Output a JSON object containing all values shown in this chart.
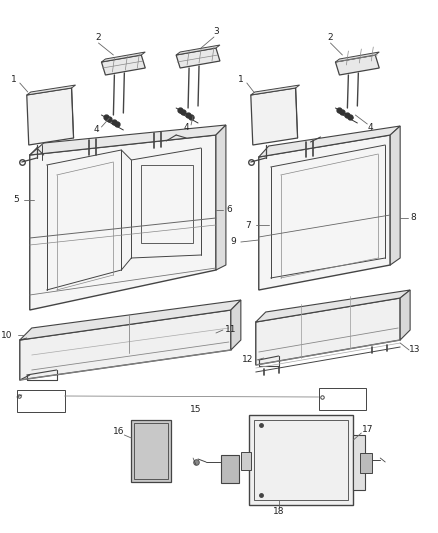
{
  "bg_color": "#ffffff",
  "line_color": "#444444",
  "label_color": "#222222",
  "fig_width": 4.38,
  "fig_height": 5.33,
  "dpi": 100
}
